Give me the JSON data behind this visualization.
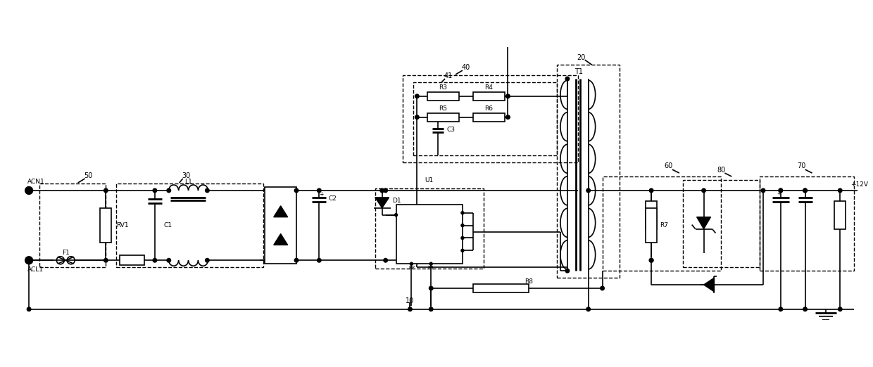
{
  "fig_width": 12.4,
  "fig_height": 5.22,
  "dpi": 100,
  "bg_color": "#ffffff",
  "lc": "#000000",
  "lw": 1.2,
  "lw2": 2.0,
  "lw_dash": 1.0,
  "xlim": [
    0,
    124
  ],
  "ylim": [
    15,
    54
  ],
  "acn1_x": 4,
  "acn1_y": 33.5,
  "acl1_x": 4,
  "acl1_y": 23.5
}
